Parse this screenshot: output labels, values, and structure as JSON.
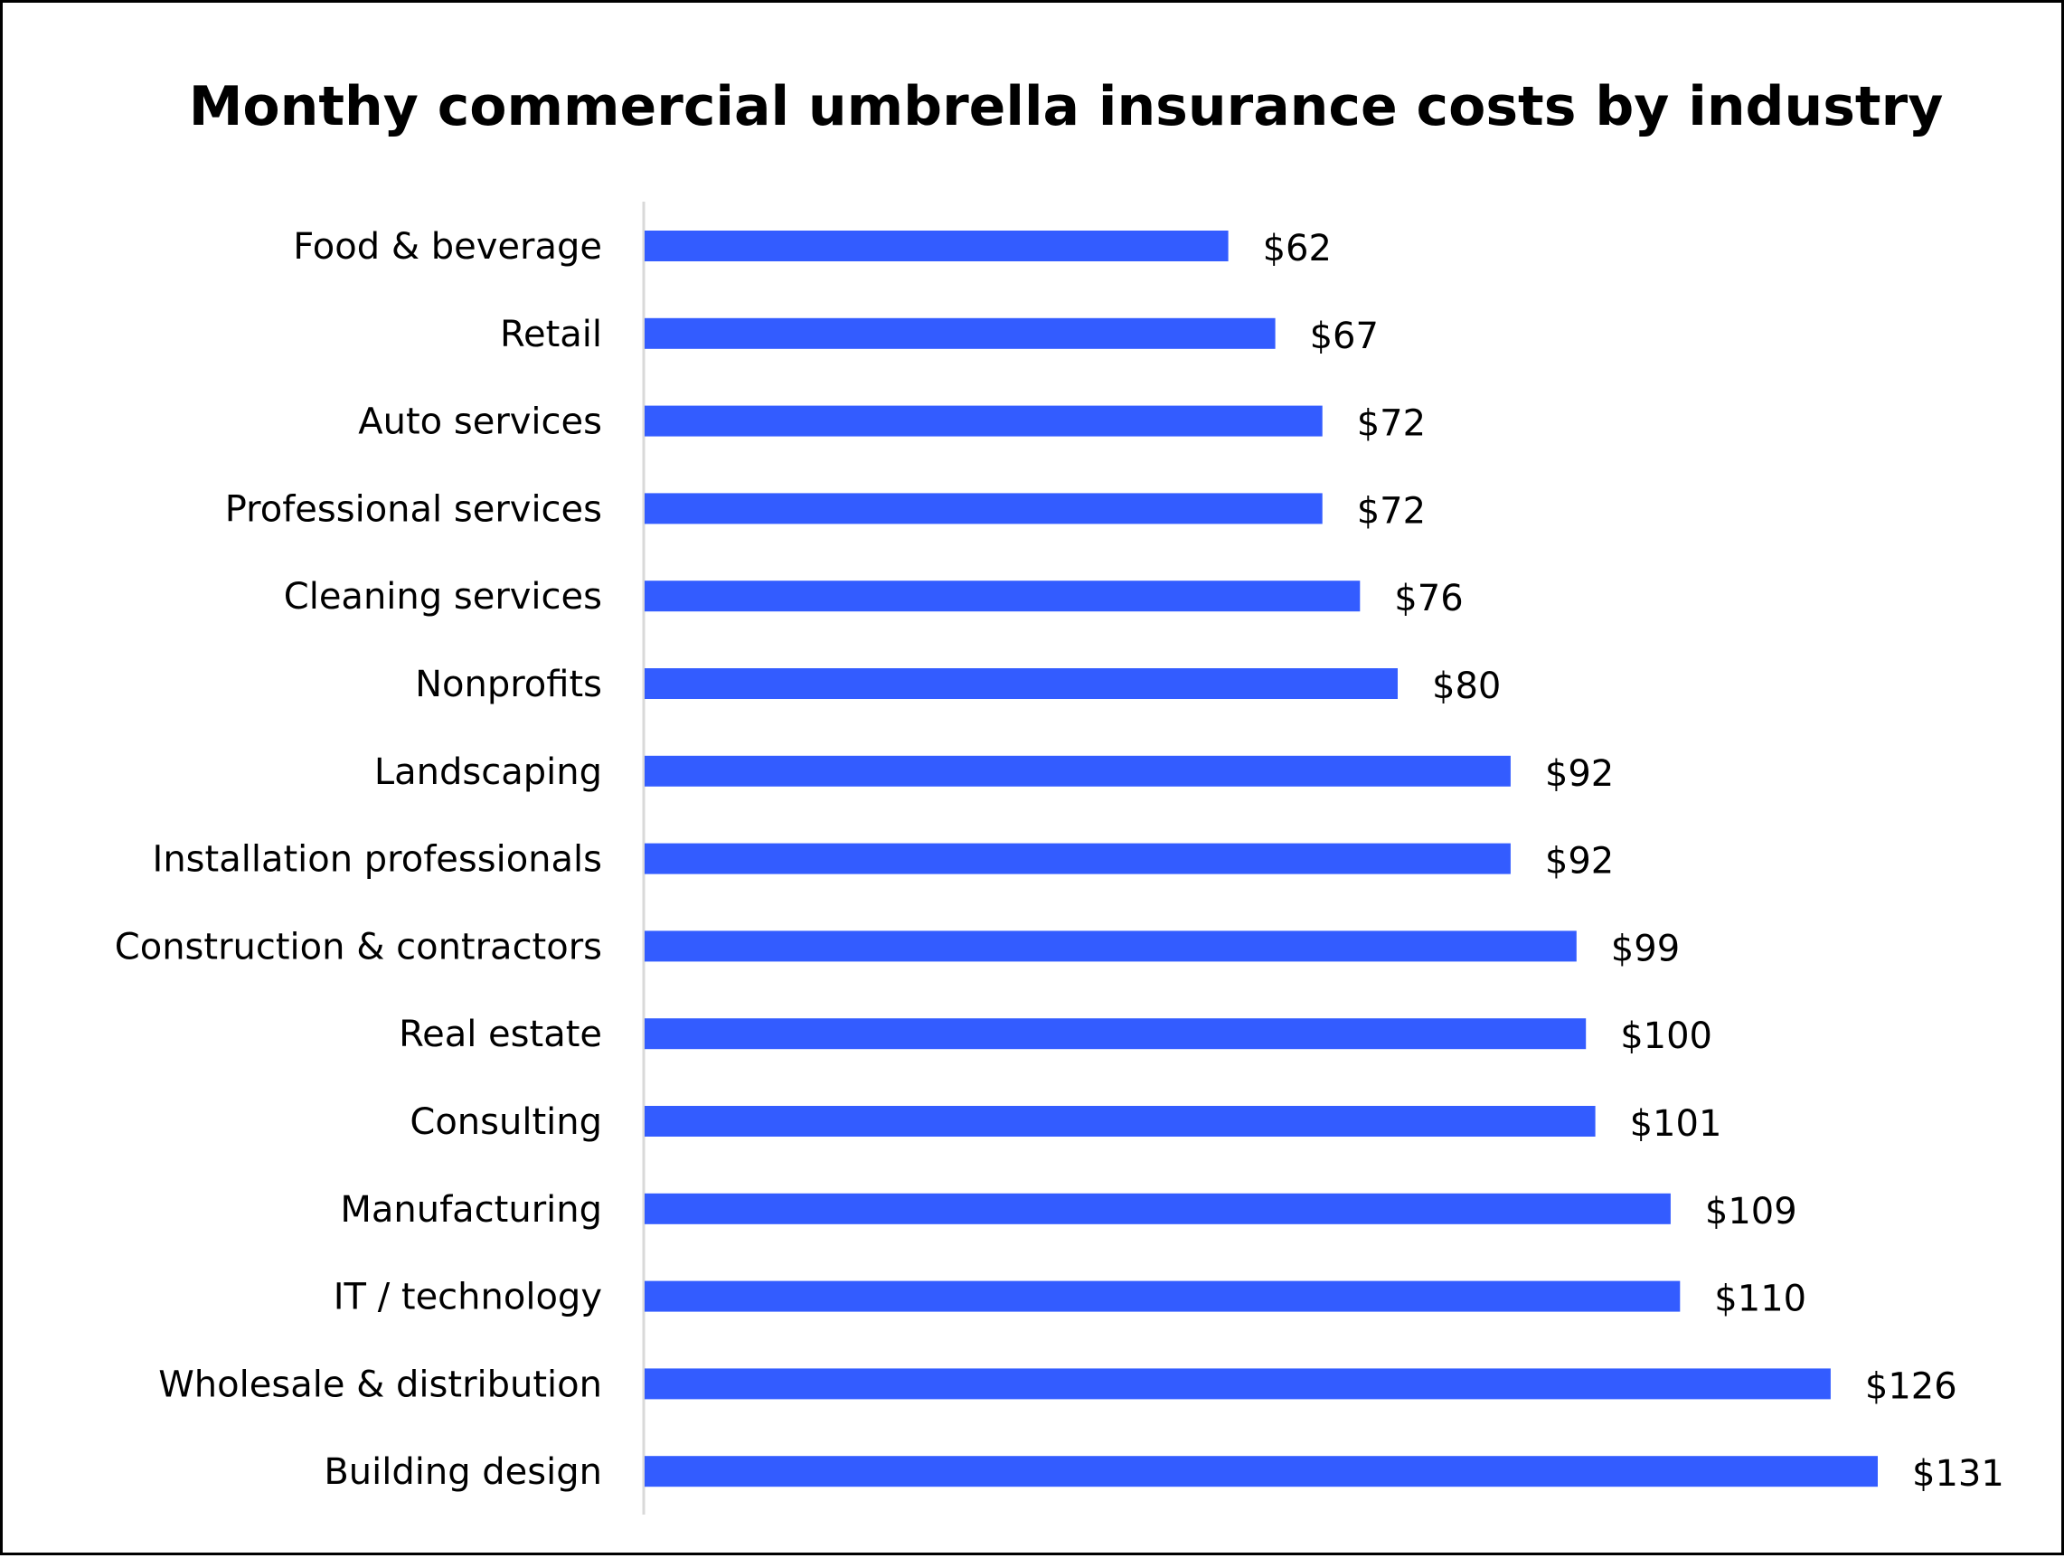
{
  "chart_data": {
    "type": "bar",
    "orientation": "horizontal",
    "title": "Monthy commercial umbrella insurance costs by industry",
    "xlabel": "",
    "ylabel": "",
    "grid": false,
    "legend": "none",
    "bar_color": "#335CFF",
    "axis_color": "#D9D9D9",
    "xlim": [
      0,
      131
    ],
    "categories": [
      "Food & beverage",
      "Retail",
      "Auto services",
      "Professional services",
      "Cleaning services",
      "Nonprofits",
      "Landscaping",
      "Installation professionals",
      "Construction & contractors",
      "Real estate",
      "Consulting",
      "Manufacturing",
      "IT / technology",
      "Wholesale & distribution",
      "Building design"
    ],
    "values": [
      62,
      67,
      72,
      72,
      76,
      80,
      92,
      92,
      99,
      100,
      101,
      109,
      110,
      126,
      131
    ],
    "value_labels": [
      "$62",
      "$67",
      "$72",
      "$72",
      "$76",
      "$80",
      "$92",
      "$92",
      "$99",
      "$100",
      "$101",
      "$109",
      "$110",
      "$126",
      "$131"
    ]
  }
}
